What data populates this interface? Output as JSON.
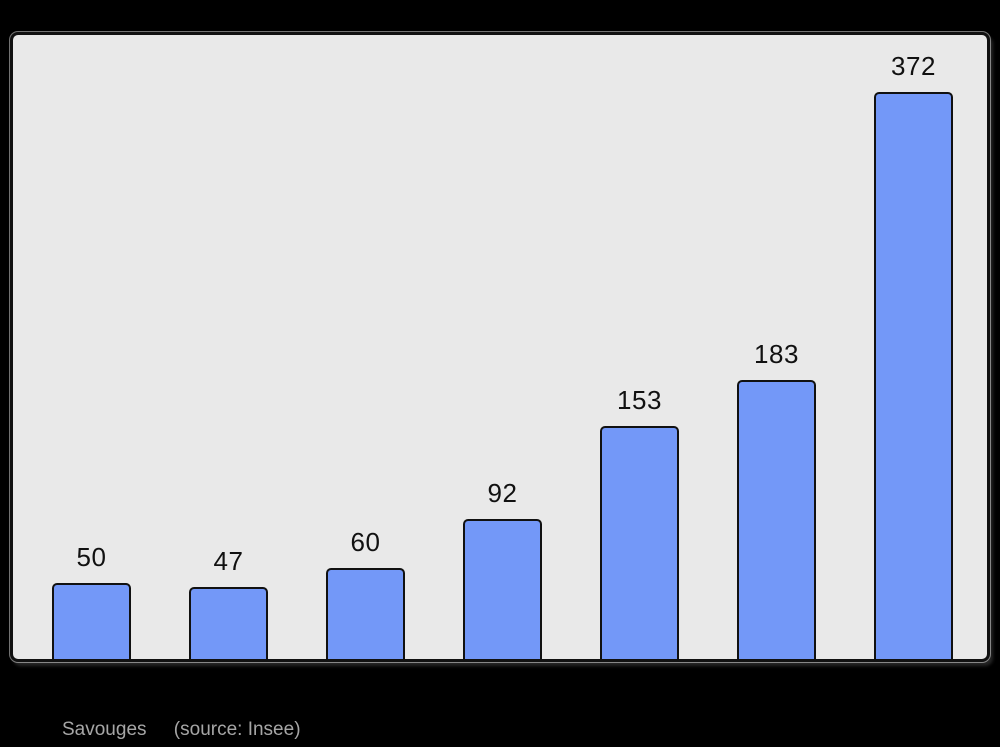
{
  "page": {
    "background_color": "#000000"
  },
  "chart": {
    "frame_background": "#e9e9e9",
    "frame_border_color": "#111111",
    "bar_fill_color": "#7398f8",
    "bar_border_color": "#111111",
    "label_color": "#111111"
  },
  "chart_data": {
    "type": "bar",
    "categories": [
      "",
      "",
      "",
      "",
      "",
      "",
      ""
    ],
    "values": [
      50,
      47,
      60,
      92,
      153,
      183,
      372
    ],
    "title": "",
    "xlabel": "",
    "ylabel": "",
    "ylim": [
      0,
      372
    ],
    "grid": false,
    "legend": "none",
    "data_labels": true,
    "bar_label_values": [
      "50",
      "47",
      "60",
      "92",
      "153",
      "183",
      "372"
    ]
  },
  "footer": {
    "place_label": "Savouges",
    "source_label": "(source: Insee)",
    "text_color": "#a6a6a6"
  }
}
